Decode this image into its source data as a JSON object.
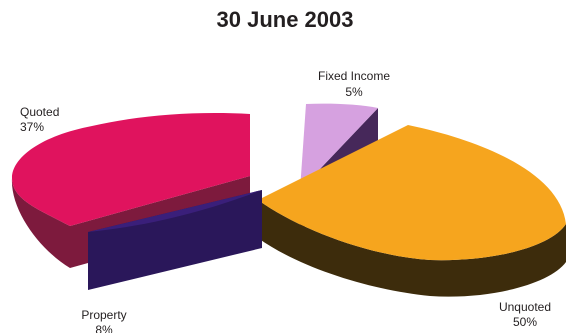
{
  "chart_data": {
    "type": "pie",
    "title": "30 June 2003",
    "style": "3d-exploded",
    "slices": [
      {
        "key": "quoted",
        "label": "Quoted",
        "value": 37,
        "value_label": "37%",
        "color": "#e0135e",
        "side_color": "#7d1a3d"
      },
      {
        "key": "fixed",
        "label": "Fixed Income",
        "value": 5,
        "value_label": "5%",
        "color": "#d6a1e0",
        "side_color": "#46285a"
      },
      {
        "key": "unquoted",
        "label": "Unquoted",
        "value": 50,
        "value_label": "50%",
        "color": "#f6a51e",
        "side_color": "#3d2c0c"
      },
      {
        "key": "property",
        "label": "Property",
        "value": 8,
        "value_label": "8%",
        "color": "#3a1f7a",
        "side_color": "#2a175a"
      }
    ]
  }
}
